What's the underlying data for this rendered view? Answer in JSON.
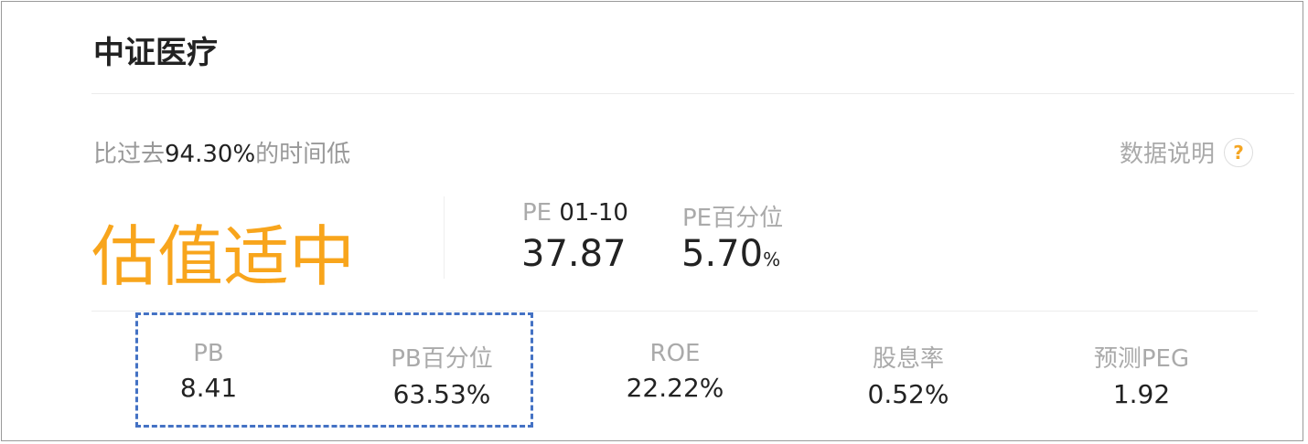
{
  "title": "中证医疗",
  "subtitle": {
    "prefix": "比过去",
    "value": "94.30%",
    "suffix": "的时间低"
  },
  "help": {
    "label": "数据说明",
    "icon": "question-circle-icon"
  },
  "valuation": "估值适中",
  "pe": {
    "label_prefix": "PE ",
    "label_date": "01-10",
    "value": "37.87"
  },
  "pe_percentile": {
    "label": "PE百分位",
    "value": "5.70",
    "unit": "%"
  },
  "metrics": [
    {
      "label": "PB",
      "value": "8.41"
    },
    {
      "label": "PB百分位",
      "value": "63.53%"
    },
    {
      "label": "ROE",
      "value": "22.22%"
    },
    {
      "label": "股息率",
      "value": "0.52%"
    },
    {
      "label": "预测PEG",
      "value": "1.92"
    }
  ],
  "colors": {
    "accent": "#f8a51c",
    "highlight_box": "#4472c4"
  }
}
